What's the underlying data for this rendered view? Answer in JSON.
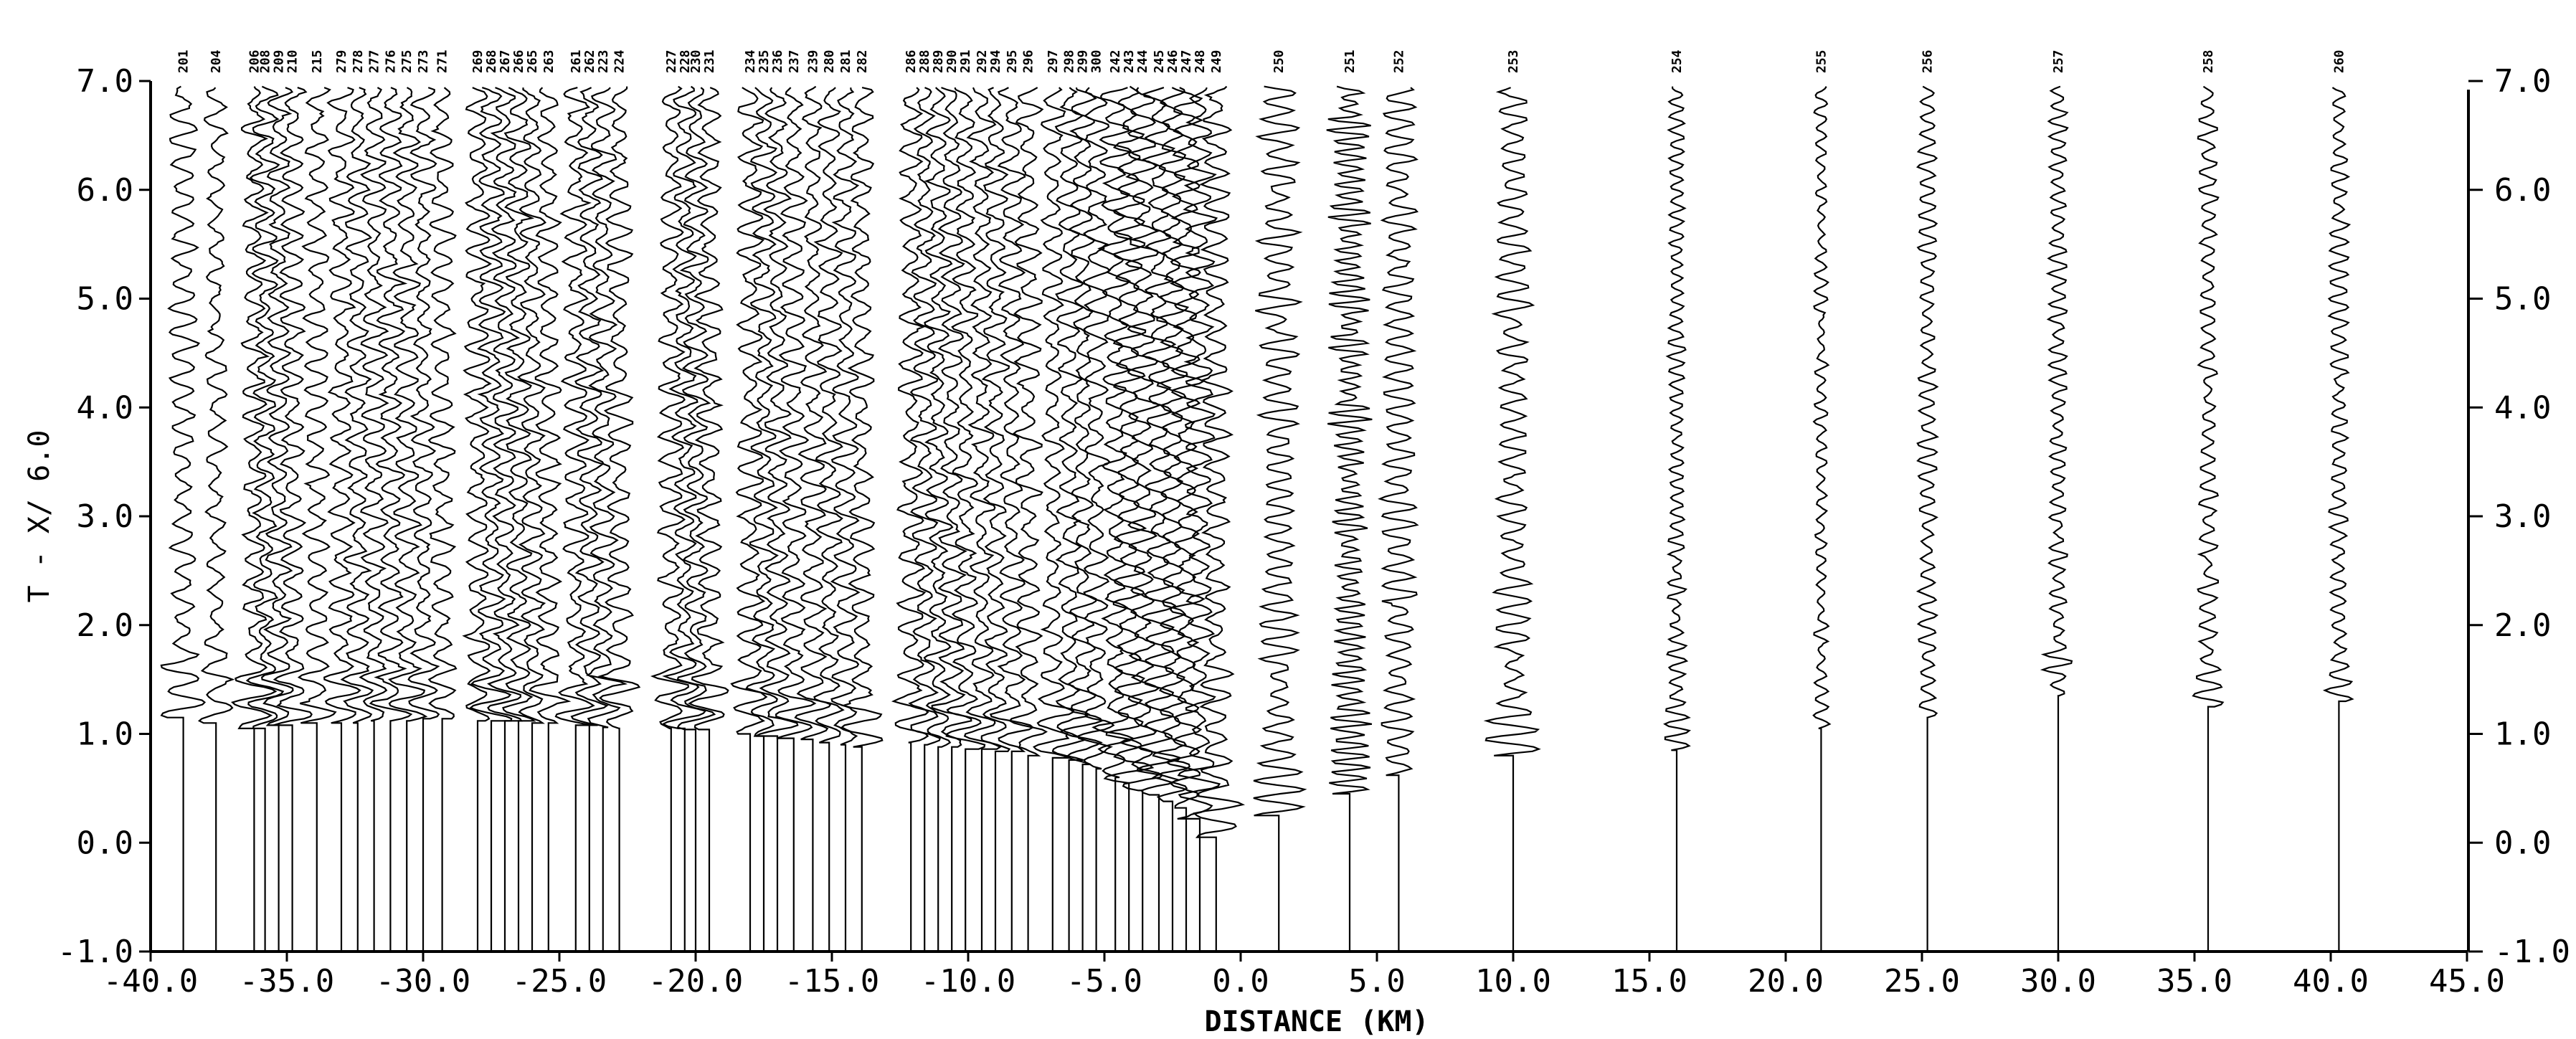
{
  "chart_data": {
    "type": "seismic-record-section",
    "xlabel": "DISTANCE (KM)",
    "ylabel": "T - X/ 6.0",
    "xlim": [
      -40.0,
      45.0
    ],
    "ylim": [
      -1.0,
      7.0
    ],
    "x_ticks": [
      "-40.0",
      "-35.0",
      "-30.0",
      "-25.0",
      "-20.0",
      "-15.0",
      "-10.0",
      "-5.0",
      "0.0",
      "5.0",
      "10.0",
      "15.0",
      "20.0",
      "25.0",
      "30.0",
      "35.0",
      "40.0",
      "45.0"
    ],
    "x_tick_values": [
      -40,
      -35,
      -30,
      -25,
      -20,
      -15,
      -10,
      -5,
      0,
      5,
      10,
      15,
      20,
      25,
      30,
      35,
      40,
      45
    ],
    "y_ticks": [
      "-1.0",
      "0.0",
      "1.0",
      "2.0",
      "3.0",
      "4.0",
      "5.0",
      "6.0",
      "7.0"
    ],
    "y_tick_values": [
      -1,
      0,
      1,
      2,
      3,
      4,
      5,
      6,
      7
    ],
    "right_y_ticks": [
      "-1.0",
      "0.0",
      "1.0",
      "2.0",
      "3.0",
      "4.0",
      "5.0",
      "6.0",
      "7.0"
    ],
    "grid": false,
    "traces": [
      {
        "station": "201",
        "x": -38.8,
        "t_onset": 1.15,
        "amp": 1.0,
        "period": 0.22
      },
      {
        "station": "204",
        "x": -37.6,
        "t_onset": 1.1,
        "amp": 0.8,
        "period": 0.24
      },
      {
        "station": "206",
        "x": -36.2,
        "t_onset": 1.05,
        "amp": 0.9,
        "period": 0.22
      },
      {
        "station": "208",
        "x": -35.8,
        "t_onset": 1.05,
        "amp": 0.9,
        "period": 0.22
      },
      {
        "station": "209",
        "x": -35.3,
        "t_onset": 1.08,
        "amp": 0.9,
        "period": 0.22
      },
      {
        "station": "210",
        "x": -34.8,
        "t_onset": 1.08,
        "amp": 0.9,
        "period": 0.22
      },
      {
        "station": "215",
        "x": -33.9,
        "t_onset": 1.1,
        "amp": 0.9,
        "period": 0.22
      },
      {
        "station": "279",
        "x": -33.0,
        "t_onset": 1.1,
        "amp": 0.9,
        "period": 0.22
      },
      {
        "station": "278",
        "x": -32.4,
        "t_onset": 1.1,
        "amp": 0.9,
        "period": 0.22
      },
      {
        "station": "277",
        "x": -31.8,
        "t_onset": 1.12,
        "amp": 0.9,
        "period": 0.22
      },
      {
        "station": "276",
        "x": -31.2,
        "t_onset": 1.12,
        "amp": 0.9,
        "period": 0.22
      },
      {
        "station": "275",
        "x": -30.6,
        "t_onset": 1.12,
        "amp": 0.9,
        "period": 0.22
      },
      {
        "station": "273",
        "x": -30.0,
        "t_onset": 1.14,
        "amp": 0.9,
        "period": 0.22
      },
      {
        "station": "271",
        "x": -29.3,
        "t_onset": 1.14,
        "amp": 0.9,
        "period": 0.22
      },
      {
        "station": "269",
        "x": -28.0,
        "t_onset": 1.12,
        "amp": 0.9,
        "period": 0.22
      },
      {
        "station": "268",
        "x": -27.5,
        "t_onset": 1.12,
        "amp": 0.9,
        "period": 0.22
      },
      {
        "station": "267",
        "x": -27.0,
        "t_onset": 1.12,
        "amp": 0.9,
        "period": 0.22
      },
      {
        "station": "266",
        "x": -26.5,
        "t_onset": 1.12,
        "amp": 0.9,
        "period": 0.22
      },
      {
        "station": "265",
        "x": -26.0,
        "t_onset": 1.1,
        "amp": 0.9,
        "period": 0.22
      },
      {
        "station": "263",
        "x": -25.4,
        "t_onset": 1.1,
        "amp": 0.9,
        "period": 0.22
      },
      {
        "station": "261",
        "x": -24.4,
        "t_onset": 1.08,
        "amp": 0.9,
        "period": 0.22
      },
      {
        "station": "262",
        "x": -23.9,
        "t_onset": 1.08,
        "amp": 0.9,
        "period": 0.22
      },
      {
        "station": "223",
        "x": -23.4,
        "t_onset": 1.06,
        "amp": 0.9,
        "period": 0.22
      },
      {
        "station": "224",
        "x": -22.8,
        "t_onset": 1.05,
        "amp": 0.9,
        "period": 0.22
      },
      {
        "station": "227",
        "x": -20.9,
        "t_onset": 1.05,
        "amp": 0.9,
        "period": 0.22
      },
      {
        "station": "228",
        "x": -20.4,
        "t_onset": 1.05,
        "amp": 0.9,
        "period": 0.22
      },
      {
        "station": "230",
        "x": -20.0,
        "t_onset": 1.04,
        "amp": 0.9,
        "period": 0.22
      },
      {
        "station": "231",
        "x": -19.5,
        "t_onset": 1.04,
        "amp": 0.9,
        "period": 0.22
      },
      {
        "station": "234",
        "x": -18.0,
        "t_onset": 1.0,
        "amp": 0.9,
        "period": 0.22
      },
      {
        "station": "235",
        "x": -17.5,
        "t_onset": 0.98,
        "amp": 0.9,
        "period": 0.22
      },
      {
        "station": "236",
        "x": -17.0,
        "t_onset": 0.98,
        "amp": 0.9,
        "period": 0.22
      },
      {
        "station": "237",
        "x": -16.4,
        "t_onset": 0.96,
        "amp": 0.9,
        "period": 0.22
      },
      {
        "station": "239",
        "x": -15.7,
        "t_onset": 0.95,
        "amp": 0.9,
        "period": 0.22
      },
      {
        "station": "280",
        "x": -15.1,
        "t_onset": 0.92,
        "amp": 0.9,
        "period": 0.22
      },
      {
        "station": "281",
        "x": -14.5,
        "t_onset": 0.9,
        "amp": 0.9,
        "period": 0.22
      },
      {
        "station": "282",
        "x": -13.9,
        "t_onset": 0.88,
        "amp": 0.9,
        "period": 0.22
      },
      {
        "station": "286",
        "x": -12.1,
        "t_onset": 0.92,
        "amp": 0.9,
        "period": 0.22
      },
      {
        "station": "288",
        "x": -11.6,
        "t_onset": 0.9,
        "amp": 0.9,
        "period": 0.22
      },
      {
        "station": "289",
        "x": -11.1,
        "t_onset": 0.88,
        "amp": 0.9,
        "period": 0.22
      },
      {
        "station": "290",
        "x": -10.6,
        "t_onset": 0.88,
        "amp": 0.9,
        "period": 0.22
      },
      {
        "station": "291",
        "x": -10.1,
        "t_onset": 0.86,
        "amp": 0.9,
        "period": 0.22
      },
      {
        "station": "292",
        "x": -9.5,
        "t_onset": 0.86,
        "amp": 0.9,
        "period": 0.22
      },
      {
        "station": "294",
        "x": -9.0,
        "t_onset": 0.84,
        "amp": 0.9,
        "period": 0.22
      },
      {
        "station": "295",
        "x": -8.4,
        "t_onset": 0.84,
        "amp": 0.9,
        "period": 0.22
      },
      {
        "station": "296",
        "x": -7.8,
        "t_onset": 0.8,
        "amp": 0.9,
        "period": 0.22
      },
      {
        "station": "297",
        "x": -6.9,
        "t_onset": 0.78,
        "amp": 0.9,
        "period": 0.22
      },
      {
        "station": "298",
        "x": -6.3,
        "t_onset": 0.76,
        "amp": 0.9,
        "period": 0.22
      },
      {
        "station": "299",
        "x": -5.8,
        "t_onset": 0.72,
        "amp": 0.9,
        "period": 0.22
      },
      {
        "station": "300",
        "x": -5.3,
        "t_onset": 0.68,
        "amp": 0.9,
        "period": 0.22
      },
      {
        "station": "242",
        "x": -4.6,
        "t_onset": 0.6,
        "amp": 1.1,
        "period": 0.2
      },
      {
        "station": "243",
        "x": -4.1,
        "t_onset": 0.55,
        "amp": 1.1,
        "period": 0.2
      },
      {
        "station": "244",
        "x": -3.6,
        "t_onset": 0.48,
        "amp": 1.1,
        "period": 0.2
      },
      {
        "station": "245",
        "x": -3.0,
        "t_onset": 0.44,
        "amp": 1.1,
        "period": 0.2
      },
      {
        "station": "246",
        "x": -2.5,
        "t_onset": 0.38,
        "amp": 1.1,
        "period": 0.2
      },
      {
        "station": "247",
        "x": -2.0,
        "t_onset": 0.32,
        "amp": 1.1,
        "period": 0.2
      },
      {
        "station": "248",
        "x": -1.5,
        "t_onset": 0.22,
        "amp": 1.1,
        "period": 0.2
      },
      {
        "station": "249",
        "x": -0.9,
        "t_onset": 0.05,
        "amp": 1.1,
        "period": 0.2
      },
      {
        "station": "250",
        "x": 1.4,
        "t_onset": 0.25,
        "amp": 1.5,
        "period": 0.16
      },
      {
        "station": "251",
        "x": 4.0,
        "t_onset": 0.45,
        "amp": 1.5,
        "period": 0.1
      },
      {
        "station": "252",
        "x": 5.8,
        "t_onset": 0.62,
        "amp": 1.3,
        "period": 0.16
      },
      {
        "station": "253",
        "x": 10.0,
        "t_onset": 0.8,
        "amp": 1.3,
        "period": 0.17
      },
      {
        "station": "254",
        "x": 16.0,
        "t_onset": 0.85,
        "amp": 0.7,
        "period": 0.13
      },
      {
        "station": "255",
        "x": 21.3,
        "t_onset": 1.05,
        "amp": 0.5,
        "period": 0.15
      },
      {
        "station": "256",
        "x": 25.2,
        "t_onset": 1.15,
        "amp": 0.7,
        "period": 0.15
      },
      {
        "station": "257",
        "x": 30.0,
        "t_onset": 1.35,
        "amp": 0.7,
        "period": 0.14
      },
      {
        "station": "258",
        "x": 35.5,
        "t_onset": 1.25,
        "amp": 0.7,
        "period": 0.16
      },
      {
        "station": "260",
        "x": 40.3,
        "t_onset": 1.3,
        "amp": 0.7,
        "period": 0.15
      }
    ]
  }
}
